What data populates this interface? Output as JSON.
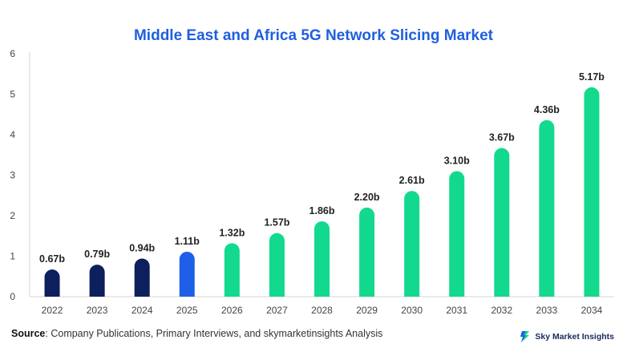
{
  "chart_data": {
    "type": "bar",
    "title": "Middle East and Africa 5G Network Slicing Market",
    "xlabel": "",
    "ylabel": "",
    "categories": [
      "2022",
      "2023",
      "2024",
      "2025",
      "2026",
      "2027",
      "2028",
      "2029",
      "2030",
      "2031",
      "2032",
      "2033",
      "2034"
    ],
    "values": [
      0.67,
      0.79,
      0.94,
      1.11,
      1.32,
      1.57,
      1.86,
      2.2,
      2.61,
      3.1,
      3.67,
      4.36,
      5.17
    ],
    "data_labels": [
      "0.67b",
      "0.79b",
      "0.94b",
      "1.11b",
      "1.32b",
      "1.57b",
      "1.86b",
      "2.20b",
      "2.61b",
      "3.10b",
      "3.67b",
      "4.36b",
      "5.17b"
    ],
    "bar_colors": [
      "#0d1f5c",
      "#0d1f5c",
      "#0d1f5c",
      "#1f5fe8",
      "#12d98e",
      "#12d98e",
      "#12d98e",
      "#12d98e",
      "#12d98e",
      "#12d98e",
      "#12d98e",
      "#12d98e",
      "#12d98e"
    ],
    "ylim": [
      0,
      6
    ],
    "yticks": [
      "0",
      "1",
      "2",
      "3",
      "4",
      "5",
      "6"
    ],
    "grid": false,
    "legend": "none"
  },
  "footer": {
    "source_label": "Source",
    "source_text": ": Company Publications, Primary Interviews, and skymarketinsights Analysis",
    "brand": "Sky Market Insights"
  },
  "colors": {
    "title": "#1f5fe0",
    "historic": "#0d1f5c",
    "base_year": "#1f5fe8",
    "forecast": "#12d98e"
  }
}
